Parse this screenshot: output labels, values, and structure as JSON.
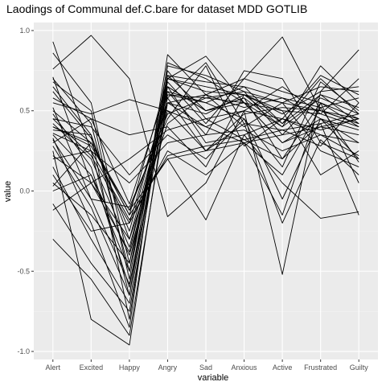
{
  "chart_data": {
    "type": "line",
    "title": "Laodings of Communal def.C.bare for dataset MDD GOTLIB",
    "xlabel": "variable",
    "ylabel": "value",
    "categories": [
      "Alert",
      "Excited",
      "Happy",
      "Angry",
      "Sad",
      "Anxious",
      "Active",
      "Frustrated",
      "Guilty"
    ],
    "ylim": [
      -1.05,
      1.05
    ],
    "yticks": [
      -1.0,
      -0.5,
      0.0,
      0.5,
      1.0
    ],
    "ytick_labels": [
      "-1.0",
      "-0.5",
      "0.0",
      "0.5",
      "1.0"
    ],
    "grid": true,
    "legend": "none",
    "colors": {
      "panel": "#ebebeb",
      "grid_major": "#ffffff",
      "grid_minor": "#f5f5f5",
      "line": "#000000"
    },
    "series": [
      {
        "values": [
          0.93,
          0.25,
          -0.65,
          0.85,
          0.6,
          0.7,
          0.96,
          0.5,
          0.42
        ]
      },
      {
        "values": [
          0.86,
          0.55,
          -0.45,
          0.7,
          0.84,
          0.55,
          0.4,
          0.78,
          0.55
        ]
      },
      {
        "values": [
          0.76,
          0.97,
          0.7,
          -0.16,
          0.05,
          0.5,
          -0.52,
          0.62,
          0.88
        ]
      },
      {
        "values": [
          0.71,
          0.05,
          -0.38,
          0.62,
          0.35,
          0.75,
          0.7,
          0.3,
          0.2
        ]
      },
      {
        "values": [
          0.68,
          0.5,
          -0.55,
          0.78,
          0.72,
          0.62,
          0.55,
          0.65,
          0.62
        ]
      },
      {
        "values": [
          0.62,
          0.33,
          -0.25,
          0.62,
          0.55,
          0.65,
          0.42,
          0.7,
          0.48
        ]
      },
      {
        "values": [
          0.55,
          0.48,
          0.57,
          0.5,
          0.4,
          0.3,
          0.1,
          0.52,
          0.58
        ]
      },
      {
        "values": [
          0.52,
          -0.05,
          -0.1,
          0.45,
          0.78,
          0.28,
          0.45,
          0.38,
          0.45
        ]
      },
      {
        "values": [
          0.48,
          0.15,
          -0.6,
          0.72,
          0.5,
          0.58,
          0.2,
          0.55,
          0.4
        ]
      },
      {
        "values": [
          0.45,
          0.4,
          0.1,
          0.35,
          0.2,
          0.45,
          -0.05,
          0.45,
          0.3
        ]
      },
      {
        "values": [
          0.42,
          0.2,
          -0.35,
          0.55,
          0.6,
          0.4,
          0.55,
          0.25,
          0.15
        ]
      },
      {
        "values": [
          0.4,
          0.28,
          -0.12,
          0.48,
          0.58,
          0.62,
          0.35,
          0.6,
          0.52
        ]
      },
      {
        "values": [
          0.38,
          0.35,
          -0.8,
          0.75,
          0.45,
          0.5,
          0.65,
          0.48,
          0.7
        ]
      },
      {
        "values": [
          0.35,
          0.1,
          -0.5,
          0.65,
          0.3,
          0.35,
          0.45,
          0.72,
          0.6
        ]
      },
      {
        "values": [
          0.33,
          -0.2,
          -0.85,
          0.8,
          0.7,
          0.55,
          0.3,
          0.4,
          0.35
        ]
      },
      {
        "values": [
          0.3,
          0.45,
          0.35,
          0.4,
          0.15,
          0.6,
          0.5,
          0.1,
          0.25
        ]
      },
      {
        "values": [
          0.28,
          -0.1,
          -0.65,
          0.68,
          0.42,
          0.7,
          0.62,
          0.55,
          0.45
        ]
      },
      {
        "values": [
          0.25,
          -0.8,
          -0.96,
          0.6,
          0.55,
          0.45,
          0.15,
          0.68,
          0.5
        ]
      },
      {
        "values": [
          0.22,
          0.05,
          -0.3,
          0.42,
          0.6,
          0.52,
          0.58,
          0.45,
          0.38
        ]
      },
      {
        "values": [
          0.2,
          0.25,
          0.05,
          0.3,
          0.35,
          0.38,
          0.25,
          0.35,
          0.22
        ]
      },
      {
        "values": [
          0.15,
          -0.3,
          -0.7,
          0.7,
          0.62,
          0.6,
          0.48,
          0.62,
          0.65
        ]
      },
      {
        "values": [
          0.1,
          -0.25,
          -0.2,
          0.25,
          0.1,
          0.3,
          -0.15,
          0.55,
          0.05
        ]
      },
      {
        "values": [
          0.05,
          -0.15,
          -0.45,
          0.58,
          0.8,
          0.42,
          0.38,
          0.28,
          0.55
        ]
      },
      {
        "values": [
          0.03,
          0.3,
          -0.15,
          0.2,
          -0.18,
          0.35,
          0.05,
          -0.17,
          -0.13
        ]
      },
      {
        "values": [
          0.0,
          0.1,
          -0.4,
          0.5,
          0.25,
          0.48,
          0.52,
          0.5,
          0.42
        ]
      },
      {
        "values": [
          -0.08,
          -0.45,
          -0.75,
          0.65,
          0.5,
          0.58,
          0.4,
          0.58,
          0.48
        ]
      },
      {
        "values": [
          -0.12,
          0.05,
          0.2,
          0.38,
          0.45,
          0.32,
          0.2,
          0.42,
          -0.15
        ]
      },
      {
        "values": [
          -0.3,
          -0.55,
          -0.9,
          0.55,
          0.4,
          0.5,
          0.45,
          0.35,
          0.3
        ]
      },
      {
        "values": [
          0.5,
          0.3,
          -0.15,
          0.7,
          0.65,
          0.6,
          0.55,
          0.5,
          0.45
        ]
      },
      {
        "values": [
          0.45,
          0.22,
          -0.2,
          0.6,
          0.58,
          0.55,
          0.5,
          0.48,
          0.4
        ]
      },
      {
        "values": [
          0.4,
          0.3,
          -0.12,
          0.2,
          0.25,
          0.3,
          0.35,
          0.4,
          0.45
        ]
      },
      {
        "values": [
          0.36,
          0.25,
          -0.18,
          0.22,
          0.28,
          0.32,
          0.38,
          0.42,
          0.48
        ]
      },
      {
        "values": [
          0.58,
          0.45,
          -0.08,
          0.65,
          0.5,
          0.55,
          0.3,
          0.45,
          0.2
        ]
      },
      {
        "values": [
          0.65,
          0.35,
          -0.3,
          0.58,
          0.25,
          0.42,
          -0.2,
          0.32,
          0.1
        ]
      },
      {
        "values": [
          0.7,
          0.42,
          -0.5,
          0.72,
          0.68,
          0.65,
          0.58,
          0.52,
          0.18
        ]
      },
      {
        "values": [
          0.32,
          -0.05,
          -0.58,
          0.55,
          0.48,
          0.6,
          0.42,
          0.6,
          0.42
        ]
      }
    ]
  }
}
